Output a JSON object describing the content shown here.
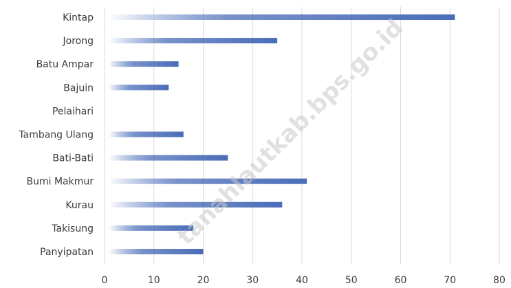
{
  "watermark": "tanahlautkab.bps.go.id",
  "chart_data": {
    "type": "bar",
    "orientation": "horizontal",
    "categories": [
      "Kintap",
      "Jorong",
      "Batu Ampar",
      "Bajuin",
      "Pelaihari",
      "Tambang Ulang",
      "Bati-Bati",
      "Bumi Makmur",
      "Kurau",
      "Takisung",
      "Panyipatan"
    ],
    "values": [
      71,
      35,
      15,
      13,
      0,
      16,
      25,
      41,
      36,
      18,
      20
    ],
    "xlim": [
      0,
      80
    ],
    "x_ticks": [
      0,
      10,
      20,
      30,
      40,
      50,
      60,
      70,
      80
    ],
    "grid": "vertical",
    "title": "",
    "xlabel": "",
    "ylabel": "",
    "bar_color": "#4a6db8",
    "bar_fade_color": "#ffffff",
    "grid_color": "#d9d9d9",
    "text_color": "#3b3b3b"
  }
}
